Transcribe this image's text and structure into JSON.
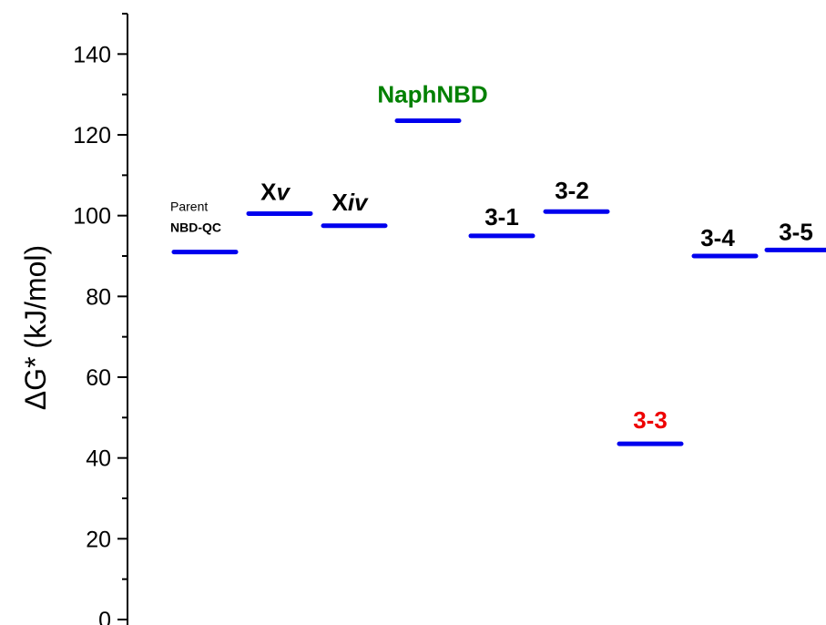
{
  "chart_data": {
    "type": "scatter",
    "ylabel": "ΔG* (kJ/mol)",
    "ylim": [
      0,
      150
    ],
    "yticks": [
      0,
      20,
      40,
      60,
      80,
      100,
      120,
      140
    ],
    "grid": false,
    "legend": "none",
    "level_color": "#0000ee",
    "points": [
      {
        "x": 1,
        "y": 91,
        "label": "NBD-QC",
        "label_top": "Parent",
        "label_color": "#000000"
      },
      {
        "x": 2,
        "y": 100.5,
        "label": "Xv",
        "label_color": "#000000"
      },
      {
        "x": 3,
        "y": 97.5,
        "label": "Xiv",
        "label_color": "#000000"
      },
      {
        "x": 4,
        "y": 123.5,
        "label": "NaphNBD",
        "label_color": "#008000"
      },
      {
        "x": 5,
        "y": 95,
        "label": "3-1",
        "label_color": "#000000"
      },
      {
        "x": 6,
        "y": 101,
        "label": "3-2",
        "label_color": "#000000"
      },
      {
        "x": 7,
        "y": 43.5,
        "label": "3-3",
        "label_color": "#ee0000"
      },
      {
        "x": 8,
        "y": 90,
        "label": "3-4",
        "label_color": "#000000"
      },
      {
        "x": 9,
        "y": 91.5,
        "label": "3-5",
        "label_color": "#000000"
      }
    ]
  }
}
